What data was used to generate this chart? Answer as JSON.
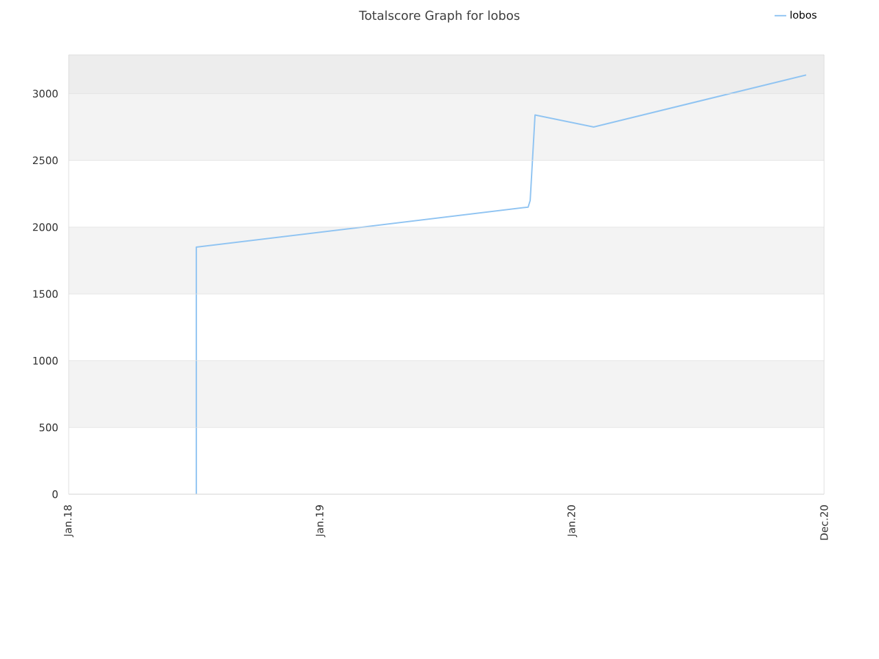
{
  "chart_data": {
    "type": "line",
    "title": "Totalscore Graph for lobos",
    "x": [
      "2018-07-05",
      "2018-07-05",
      "2019-10-29",
      "2019-11-01",
      "2019-11-08",
      "2020-02-01",
      "2020-12-05"
    ],
    "series": [
      {
        "name": "lobos",
        "color": "#90c4f2",
        "values": [
          0,
          1850,
          2150,
          2200,
          2840,
          2750,
          3140
        ]
      }
    ],
    "xlim": [
      "2018-01-01",
      "2020-12-31"
    ],
    "xticks": [
      {
        "value": "2018-01-01",
        "label": "Jan.18"
      },
      {
        "value": "2019-01-01",
        "label": "Jan.19"
      },
      {
        "value": "2020-01-01",
        "label": "Jan.20"
      },
      {
        "value": "2020-12-31",
        "label": "Dec.20"
      }
    ],
    "ylim": [
      0,
      3290
    ],
    "yticks": [
      0,
      500,
      1000,
      1500,
      2000,
      2500,
      3000
    ],
    "bands": [
      {
        "axis": "y",
        "from": 500,
        "to": 1000,
        "color": "#f3f3f3"
      },
      {
        "axis": "y",
        "from": 1500,
        "to": 2000,
        "color": "#f3f3f3"
      },
      {
        "axis": "y",
        "from": 2500,
        "to": 3000,
        "color": "#f3f3f3"
      },
      {
        "axis": "y",
        "from": 3000,
        "to": 3290,
        "color": "#ededed"
      }
    ],
    "grid": "y",
    "legend": "top right",
    "marker": "none",
    "line_style": "solid"
  }
}
